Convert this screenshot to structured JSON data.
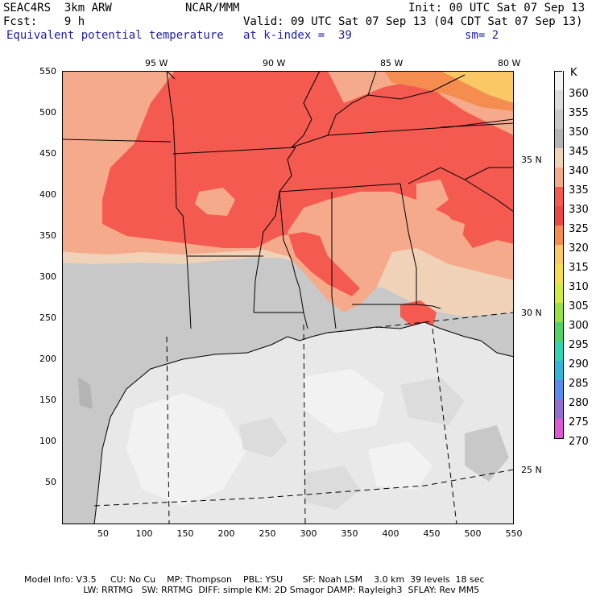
{
  "header": {
    "model": "SEAC4RS  3km ARW",
    "center": "NCAR/MMM",
    "init": "Init: 00 UTC Sat 07 Sep 13",
    "fcst": "Fcst:    9 h",
    "valid": "Valid: 09 UTC Sat 07 Sep 13 (04 CDT Sat 07 Sep 13)",
    "field": "Equivalent potential temperature",
    "level": "at k-index =  39",
    "smooth": "sm= 2"
  },
  "map": {
    "lon_labels": [
      "95 W",
      "90 W",
      "85 W",
      "80 W"
    ],
    "lat_labels": [
      "35 N",
      "30 N",
      "25 N"
    ],
    "y_ticks": [
      "550",
      "500",
      "450",
      "400",
      "350",
      "300",
      "250",
      "200",
      "150",
      "100",
      "50"
    ],
    "x_ticks": [
      "50",
      "100",
      "150",
      "200",
      "250",
      "300",
      "350",
      "400",
      "450",
      "500",
      "550"
    ]
  },
  "legend": {
    "unit": "K",
    "levels": [
      "360",
      "355",
      "350",
      "345",
      "340",
      "335",
      "330",
      "325",
      "320",
      "315",
      "310",
      "305",
      "300",
      "295",
      "290",
      "285",
      "280",
      "275",
      "270"
    ],
    "colors": [
      "#f2f2f2",
      "#dcdcdc",
      "#c8c8c8",
      "#b4b4b4",
      "#f0d2b9",
      "#f5aa8c",
      "#f55a50",
      "#f04646",
      "#f58c50",
      "#fac864",
      "#f5dc50",
      "#d2eb41",
      "#96e046",
      "#50d264",
      "#32d2b4",
      "#32b4dc",
      "#5a8cf0",
      "#966ed2",
      "#dc5ad2"
    ]
  },
  "footer": {
    "line1": "Model Info: V3.5     CU: No Cu    MP: Thompson    PBL: YSU       SF: Noah LSM    3.0 km  39 levels  18 sec",
    "line2": "                     LW: RRTMG   SW: RRTMG  DIFF: simple KM: 2D Smagor DAMP: Rayleigh3  SFLAY: Rev MM5"
  }
}
